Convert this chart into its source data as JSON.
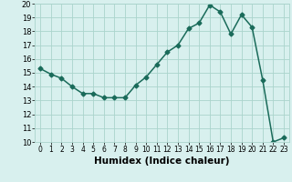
{
  "x": [
    0,
    1,
    2,
    3,
    4,
    5,
    6,
    7,
    8,
    9,
    10,
    11,
    12,
    13,
    14,
    15,
    16,
    17,
    18,
    19,
    20,
    21,
    22,
    23
  ],
  "y": [
    15.3,
    14.9,
    14.6,
    14.0,
    13.5,
    13.5,
    13.2,
    13.2,
    13.2,
    14.1,
    14.7,
    15.6,
    16.5,
    17.0,
    18.2,
    18.6,
    19.9,
    19.4,
    17.8,
    19.2,
    18.3,
    14.5,
    10.0,
    10.3
  ],
  "line_color": "#1a6b5a",
  "marker": "D",
  "marker_size": 2.5,
  "bg_color": "#d8f0ee",
  "grid_color": "#aad4cc",
  "xlabel": "Humidex (Indice chaleur)",
  "xlabel_fontsize": 7.5,
  "xlim": [
    -0.5,
    23.5
  ],
  "ylim": [
    10,
    20
  ],
  "yticks": [
    10,
    11,
    12,
    13,
    14,
    15,
    16,
    17,
    18,
    19,
    20
  ],
  "xticks": [
    0,
    1,
    2,
    3,
    4,
    5,
    6,
    7,
    8,
    9,
    10,
    11,
    12,
    13,
    14,
    15,
    16,
    17,
    18,
    19,
    20,
    21,
    22,
    23
  ],
  "tick_fontsize": 6.0,
  "linewidth": 1.1
}
